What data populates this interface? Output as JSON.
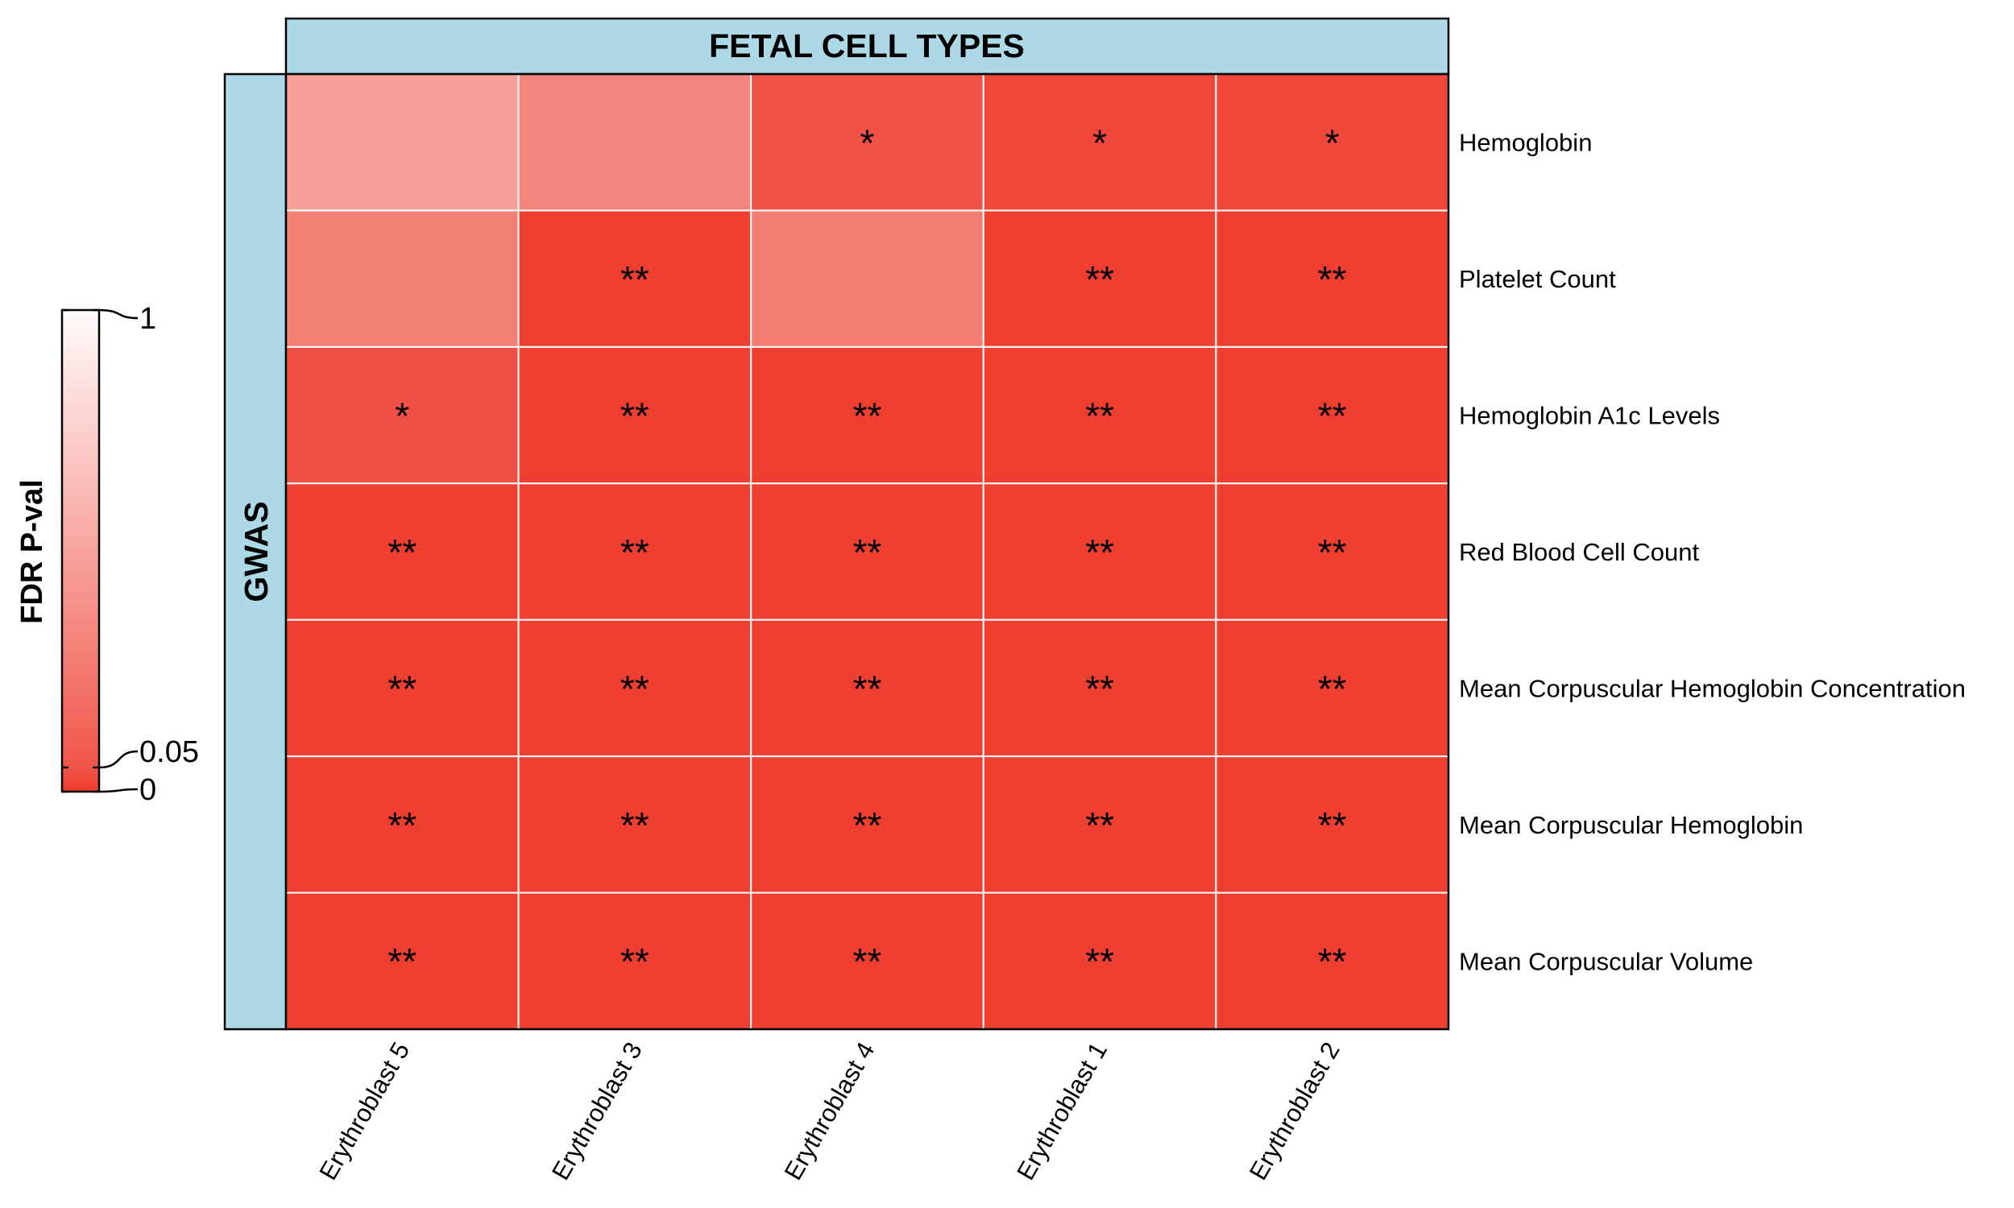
{
  "chart_data": {
    "type": "heatmap",
    "title": "",
    "column_strip_label": "FETAL CELL TYPES",
    "row_strip_label": "GWAS",
    "columns": [
      "Erythroblast 5",
      "Erythroblast 3",
      "Erythroblast 4",
      "Erythroblast 1",
      "Erythroblast 2"
    ],
    "rows": [
      "Hemoglobin",
      "Platelet Count",
      "Hemoglobin A1c Levels",
      "Red Blood Cell Count",
      "Mean Corpuscular Hemoglobin Concentration",
      "Mean Corpuscular Hemoglobin",
      "Mean Corpuscular Volume"
    ],
    "fdr_values": [
      [
        0.3,
        0.18,
        0.04,
        0.01,
        0.01
      ],
      [
        0.16,
        0.001,
        0.14,
        0.001,
        0.001
      ],
      [
        0.03,
        0.001,
        0.001,
        0.001,
        0.001
      ],
      [
        0.001,
        0.001,
        0.001,
        0.001,
        0.001
      ],
      [
        0.001,
        0.001,
        0.001,
        0.001,
        0.001
      ],
      [
        0.001,
        0.001,
        0.001,
        0.001,
        0.001
      ],
      [
        0.001,
        0.001,
        0.001,
        0.001,
        0.001
      ]
    ],
    "significance": [
      [
        "",
        "",
        "*",
        "*",
        "*"
      ],
      [
        "",
        "**",
        "",
        "**",
        "**"
      ],
      [
        "*",
        "**",
        "**",
        "**",
        "**"
      ],
      [
        "**",
        "**",
        "**",
        "**",
        "**"
      ],
      [
        "**",
        "**",
        "**",
        "**",
        "**"
      ],
      [
        "**",
        "**",
        "**",
        "**",
        "**"
      ],
      [
        "**",
        "**",
        "**",
        "**",
        "**"
      ]
    ],
    "legend": {
      "title": "FDR P-val",
      "ticks": [
        {
          "label": "1",
          "value": 1
        },
        {
          "label": "0.05",
          "value": 0.05
        },
        {
          "label": "0",
          "value": 0
        }
      ],
      "color_low": "#ee3b2c",
      "color_high": "#ffffff"
    },
    "colors": {
      "strip": "#add8e6",
      "grid": "#ffffff",
      "border": "#000000"
    }
  }
}
